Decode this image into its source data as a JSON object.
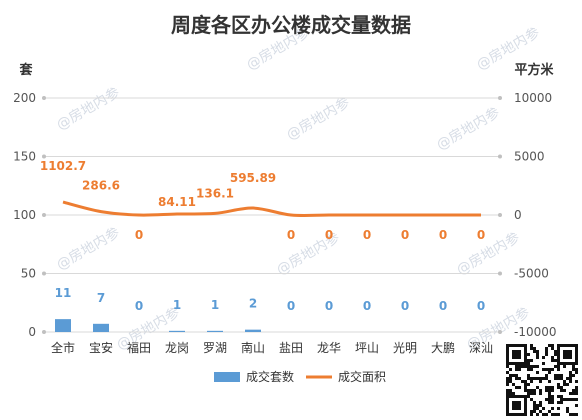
{
  "chart_data": {
    "type": "bar",
    "title": "周度各区办公楼成交量数据",
    "categories": [
      "全市",
      "宝安",
      "福田",
      "龙岗",
      "罗湖",
      "南山",
      "盐田",
      "龙华",
      "坪山",
      "光明",
      "大鹏",
      "深汕"
    ],
    "series": [
      {
        "name": "成交套数",
        "type": "bar",
        "axis": "left",
        "values": [
          11,
          7,
          0,
          1,
          1,
          2,
          0,
          0,
          0,
          0,
          0,
          0
        ],
        "labels": [
          "11",
          "7",
          "0",
          "1",
          "1",
          "2",
          "0",
          "0",
          "0",
          "0",
          "0",
          "0"
        ]
      },
      {
        "name": "成交面积",
        "type": "line",
        "axis": "right",
        "values": [
          1102.7,
          286.6,
          0,
          84.11,
          136.1,
          595.89,
          0,
          0,
          0,
          0,
          0,
          0
        ],
        "labels": [
          "1102.7",
          "286.6",
          "0",
          "84.11",
          "136.1",
          "595.89",
          "0",
          "0",
          "0",
          "0",
          "0",
          "0"
        ]
      }
    ],
    "left_axis": {
      "label": "套",
      "range": [
        0,
        200
      ],
      "ticks": [
        "0",
        "50",
        "100",
        "150",
        "200"
      ]
    },
    "right_axis": {
      "label": "平方米",
      "range": [
        -10000,
        10000
      ],
      "ticks": [
        "-10000",
        "-5000",
        "0",
        "5000",
        "10000"
      ]
    },
    "grid": true,
    "legend": "bottom"
  },
  "colors": {
    "bar": "#5b9bd5",
    "line": "#ed7d31",
    "grid": "#d9d9d9",
    "watermark": "#d7dde6"
  },
  "watermark_text": "@房地内参"
}
